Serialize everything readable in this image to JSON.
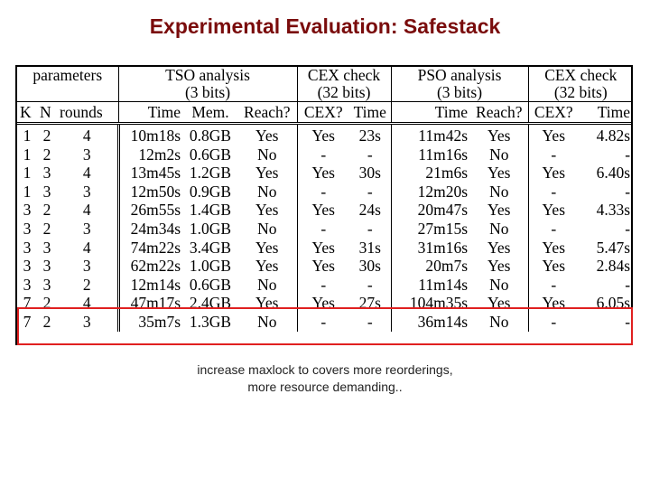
{
  "slide": {
    "title": "Experimental Evaluation: Safestack",
    "caption_line1": "increase maxlock to covers more reorderings,",
    "caption_line2": "more resource demanding.."
  },
  "table": {
    "group_headers": {
      "parameters": "parameters",
      "tso_analysis": "TSO analysis",
      "tso_bits": "(3 bits)",
      "tso_cex_check": "CEX check",
      "tso_cex_bits": "(32 bits)",
      "pso_analysis": "PSO analysis",
      "pso_bits": "(3 bits)",
      "pso_cex_check": "CEX check",
      "pso_cex_bits": "(32 bits)"
    },
    "columns": [
      "K",
      "N",
      "rounds",
      "Time",
      "Mem.",
      "Reach?",
      "CEX?",
      "Time",
      "Time",
      "Reach?",
      "CEX?",
      "Time"
    ],
    "rows": [
      [
        "1",
        "2",
        "4",
        "10m18s",
        "0.8GB",
        "Yes",
        "Yes",
        "23s",
        "11m42s",
        "Yes",
        "Yes",
        "4.82s"
      ],
      [
        "1",
        "2",
        "3",
        "12m2s",
        "0.6GB",
        "No",
        "-",
        "-",
        "11m16s",
        "No",
        "-",
        "-"
      ],
      [
        "1",
        "3",
        "4",
        "13m45s",
        "1.2GB",
        "Yes",
        "Yes",
        "30s",
        "21m6s",
        "Yes",
        "Yes",
        "6.40s"
      ],
      [
        "1",
        "3",
        "3",
        "12m50s",
        "0.9GB",
        "No",
        "-",
        "-",
        "12m20s",
        "No",
        "-",
        "-"
      ],
      [
        "3",
        "2",
        "4",
        "26m55s",
        "1.4GB",
        "Yes",
        "Yes",
        "24s",
        "20m47s",
        "Yes",
        "Yes",
        "4.33s"
      ],
      [
        "3",
        "2",
        "3",
        "24m34s",
        "1.0GB",
        "No",
        "-",
        "-",
        "27m15s",
        "No",
        "-",
        "-"
      ],
      [
        "3",
        "3",
        "4",
        "74m22s",
        "3.4GB",
        "Yes",
        "Yes",
        "31s",
        "31m16s",
        "Yes",
        "Yes",
        "5.47s"
      ],
      [
        "3",
        "3",
        "3",
        "62m22s",
        "1.0GB",
        "Yes",
        "Yes",
        "30s",
        "20m7s",
        "Yes",
        "Yes",
        "2.84s"
      ],
      [
        "3",
        "3",
        "2",
        "12m14s",
        "0.6GB",
        "No",
        "-",
        "-",
        "11m14s",
        "No",
        "-",
        "-"
      ],
      [
        "7",
        "2",
        "4",
        "47m17s",
        "2.4GB",
        "Yes",
        "Yes",
        "27s",
        "104m35s",
        "Yes",
        "Yes",
        "6.05s"
      ],
      [
        "7",
        "2",
        "3",
        "35m7s",
        "1.3GB",
        "No",
        "-",
        "-",
        "36m14s",
        "No",
        "-",
        "-"
      ]
    ],
    "highlight_color": "#e02020"
  },
  "colors": {
    "title": "#7a0c0c",
    "caption": "#222222"
  }
}
